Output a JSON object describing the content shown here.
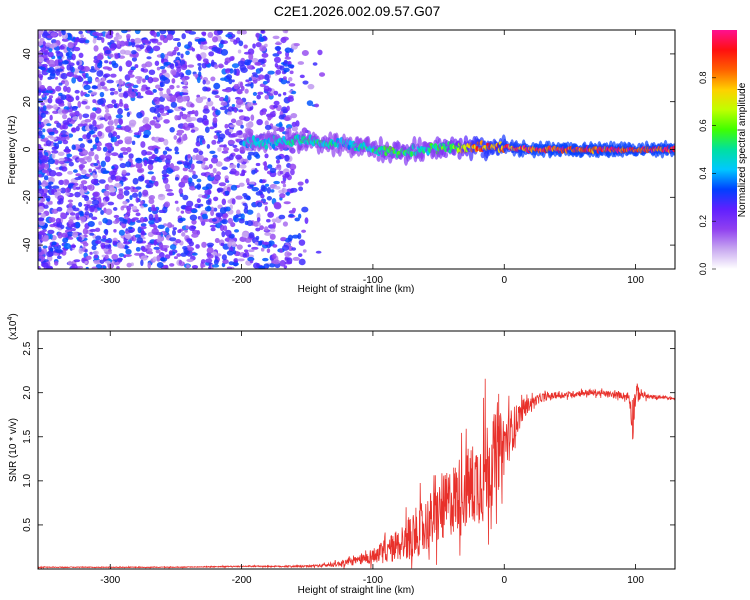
{
  "title": "C2E1.2026.002.09.57.G07",
  "chart_data": [
    {
      "type": "heatmap",
      "title": "C2E1.2026.002.09.57.G07",
      "xlabel": "Height of straight line (km)",
      "ylabel": "Frequency (Hz)",
      "xlim": [
        -355,
        130
      ],
      "ylim": [
        -50,
        50
      ],
      "x_ticks": [
        -300,
        -200,
        -100,
        0,
        100
      ],
      "x_tick_labels": [
        "-300",
        "-200",
        "-100",
        "0",
        "100"
      ],
      "y_ticks": [
        -40,
        -20,
        0,
        20,
        40
      ],
      "y_tick_labels": [
        "-40",
        "-20",
        "0",
        "20",
        "40"
      ],
      "colorbar": {
        "label": "Normalized spectral amplitude",
        "range": [
          0.0,
          1.0
        ],
        "ticks": [
          0.0,
          0.2,
          0.4,
          0.6,
          0.8
        ],
        "tick_labels": [
          "0.0",
          "0.2",
          "0.4",
          "0.6",
          "0.8"
        ],
        "colormap": [
          "#ffffff",
          "#c8a8f0",
          "#9040f0",
          "#6020ff",
          "#0040ff",
          "#00c8ff",
          "#00e0a0",
          "#40ff00",
          "#c0ff00",
          "#ffd000",
          "#ff6000",
          "#ff1010",
          "#ff1090"
        ]
      },
      "description_points": {
        "signal_track_x": [
          -195,
          -180,
          -160,
          -140,
          -120,
          -100,
          -80,
          -60,
          -40,
          -20,
          0,
          20,
          60,
          100,
          130
        ],
        "signal_track_freq": [
          3,
          3,
          4,
          3,
          2,
          0,
          -1,
          0,
          1,
          1,
          1,
          0,
          0,
          0,
          0
        ],
        "signal_track_amplitude": [
          0.45,
          0.45,
          0.5,
          0.5,
          0.45,
          0.5,
          0.55,
          0.5,
          0.6,
          0.85,
          0.9,
          0.95,
          0.95,
          0.95,
          0.95
        ]
      }
    },
    {
      "type": "line",
      "xlabel": "Height of straight line (km)",
      "ylabel": "SNR (10 * v/v)",
      "y_multiplier": "(x10",
      "y_multiplier_exp": "4",
      "xlim": [
        -355,
        130
      ],
      "ylim": [
        0.0,
        2.7
      ],
      "x_ticks": [
        -300,
        -200,
        -100,
        0,
        100
      ],
      "x_tick_labels": [
        "-300",
        "-200",
        "-100",
        "0",
        "100"
      ],
      "y_ticks": [
        0.5,
        1.0,
        1.5,
        2.0,
        2.5
      ],
      "y_tick_labels": [
        "0.5",
        "1.0",
        "1.5",
        "2.0",
        "2.5"
      ],
      "series": [
        {
          "name": "SNR",
          "color": "#e8302a",
          "x": [
            -355,
            -300,
            -250,
            -200,
            -150,
            -130,
            -110,
            -100,
            -90,
            -80,
            -70,
            -60,
            -50,
            -40,
            -30,
            -20,
            -15,
            -10,
            -5,
            0,
            5,
            10,
            15,
            20,
            25,
            30,
            40,
            50,
            60,
            70,
            80,
            90,
            95,
            98,
            100,
            105,
            110,
            120,
            130
          ],
          "y": [
            0.02,
            0.02,
            0.02,
            0.03,
            0.03,
            0.05,
            0.1,
            0.15,
            0.2,
            0.28,
            0.38,
            0.5,
            0.62,
            0.78,
            0.9,
            1.0,
            1.1,
            1.22,
            1.32,
            1.42,
            1.55,
            1.7,
            1.82,
            1.88,
            1.92,
            1.95,
            1.97,
            1.98,
            2.0,
            2.0,
            1.98,
            1.97,
            1.95,
            1.7,
            2.0,
            1.98,
            1.95,
            1.95,
            1.93
          ],
          "noise_amplitude": [
            0.005,
            0.005,
            0.005,
            0.006,
            0.01,
            0.03,
            0.06,
            0.1,
            0.15,
            0.22,
            0.3,
            0.35,
            0.4,
            0.45,
            0.5,
            0.55,
            0.7,
            0.6,
            0.5,
            0.4,
            0.3,
            0.2,
            0.12,
            0.08,
            0.06,
            0.05,
            0.04,
            0.04,
            0.04,
            0.04,
            0.04,
            0.04,
            0.06,
            0.3,
            0.15,
            0.05,
            0.03,
            0.02,
            0.02
          ]
        }
      ]
    }
  ]
}
